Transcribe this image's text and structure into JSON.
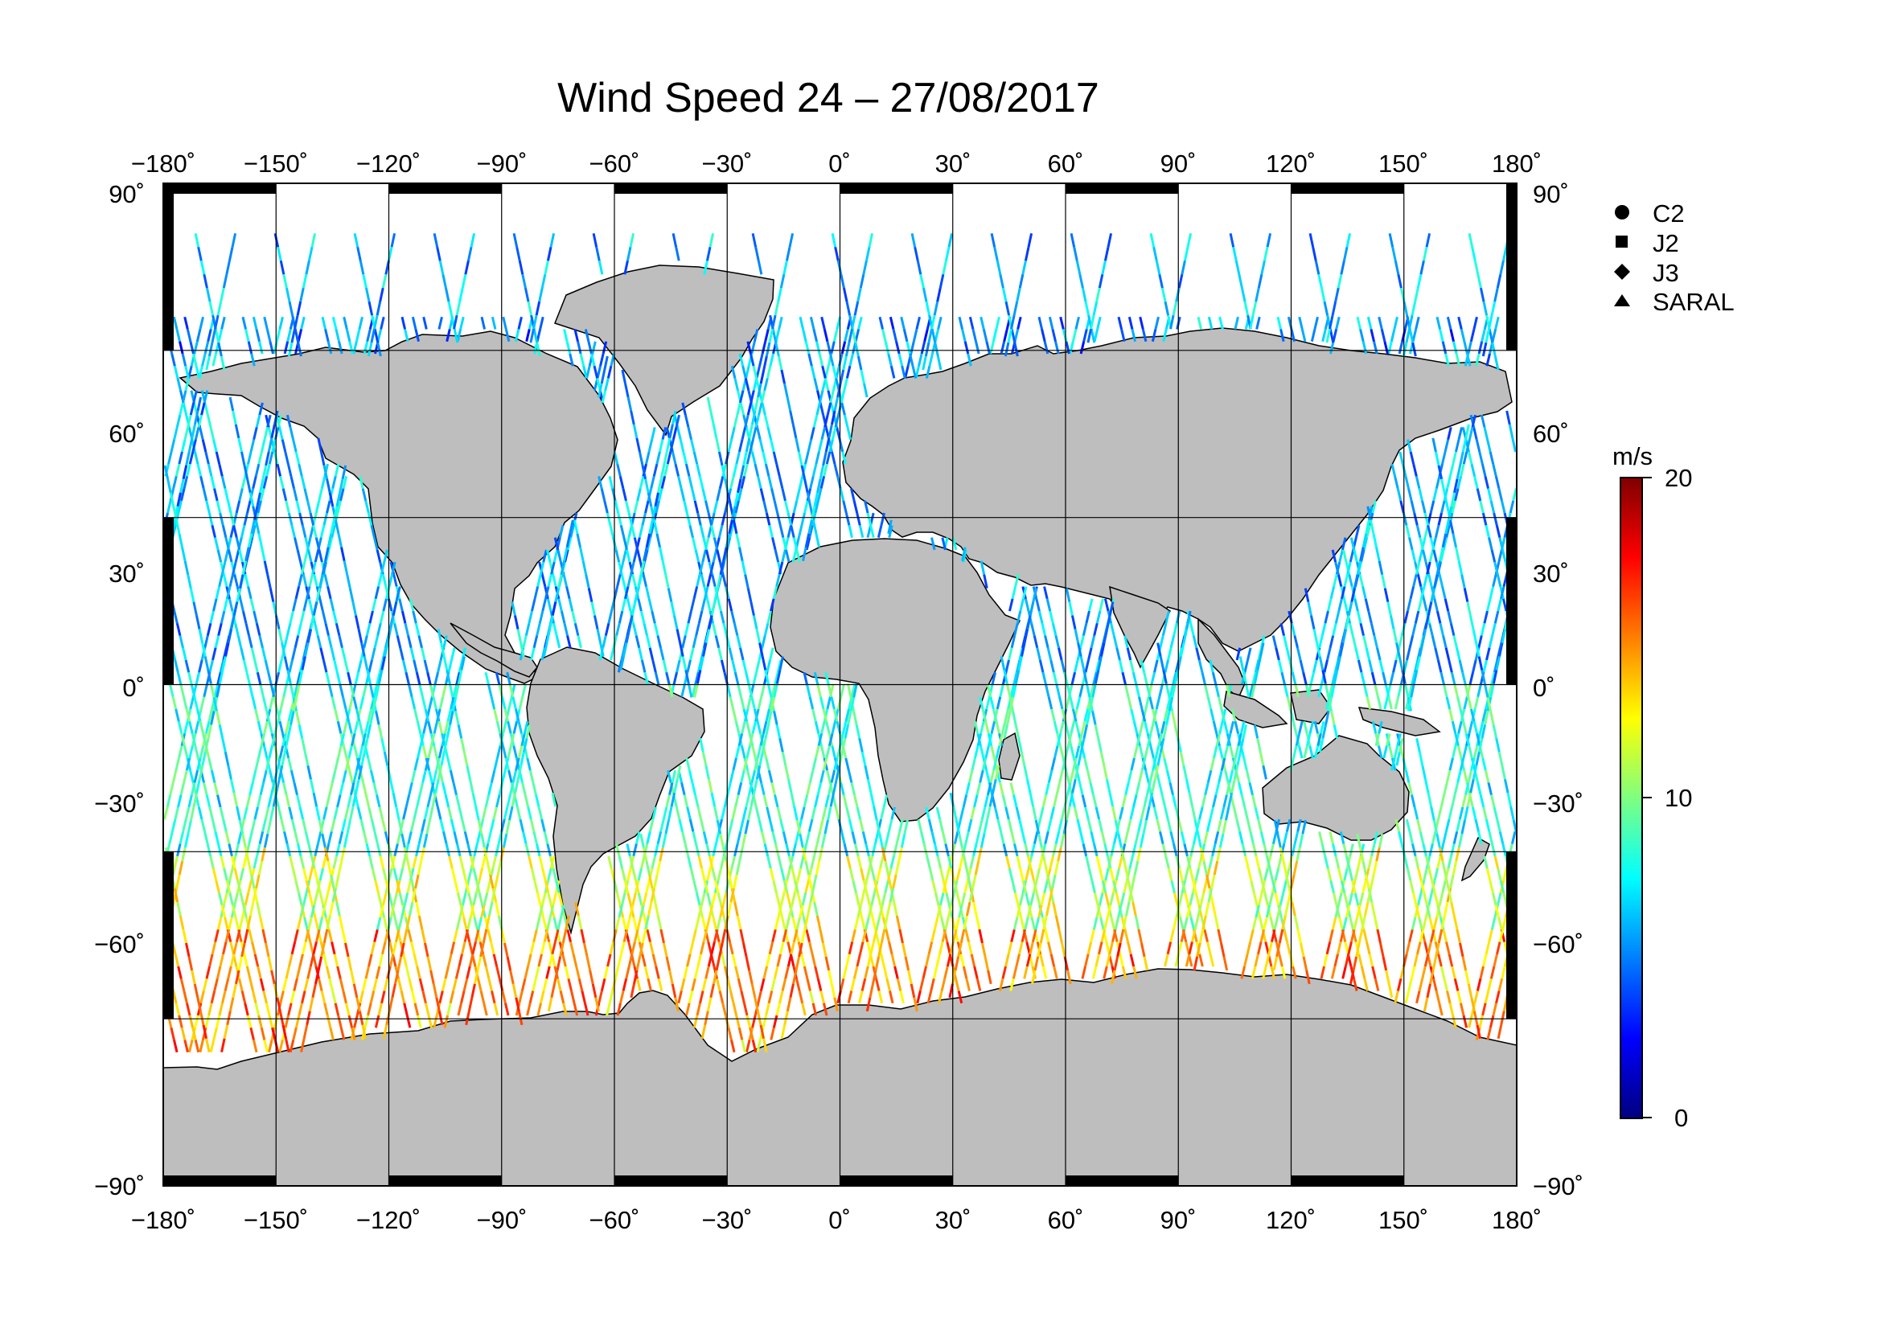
{
  "title": "Wind Speed 24 – 27/08/2017",
  "map": {
    "projection": "equirectangular",
    "lon_range": [
      -180,
      180
    ],
    "lat_range": [
      -90,
      90
    ],
    "grid_step_lon": 30,
    "grid_step_lat": 30,
    "grid": true,
    "land_color": "#bebebe",
    "lon_tick_labels": [
      "−180˚",
      "−150˚",
      "−120˚",
      "−90˚",
      "−60˚",
      "−30˚",
      "0˚",
      "30˚",
      "60˚",
      "90˚",
      "120˚",
      "150˚",
      "180˚"
    ],
    "lat_tick_labels": [
      "90˚",
      "60˚",
      "30˚",
      "0˚",
      "−30˚",
      "−60˚",
      "−90˚"
    ]
  },
  "legend": {
    "placement": "top-right",
    "items": [
      {
        "symbol": "circle",
        "label": "C2"
      },
      {
        "symbol": "square",
        "label": "J2"
      },
      {
        "symbol": "diamond",
        "label": "J3"
      },
      {
        "symbol": "triangle",
        "label": "SARAL"
      }
    ]
  },
  "colorbar": {
    "unit": "m/s",
    "min": 0,
    "max": 20,
    "tick_labels": [
      "20",
      "10",
      "0"
    ],
    "stops": [
      "#00007f",
      "#0000ff",
      "#007fff",
      "#00ffff",
      "#7fff7f",
      "#ffff00",
      "#ff7f00",
      "#ff0000",
      "#7f0000"
    ]
  },
  "chart_data": {
    "type": "scatter",
    "title": "Wind Speed 24 – 27/08/2017",
    "xlabel": "",
    "ylabel": "",
    "xlim": [
      -180,
      180
    ],
    "ylim": [
      -90,
      90
    ],
    "color_scale": {
      "unit": "m/s",
      "min": 0,
      "max": 20
    },
    "series": [
      {
        "name": "C2",
        "wind_speed_by_lat_band": [
          [
            60,
            66,
            6
          ],
          [
            30,
            60,
            6
          ],
          [
            0,
            30,
            6
          ],
          [
            -30,
            0,
            8
          ],
          [
            -45,
            -30,
            11
          ],
          [
            -66,
            -45,
            15
          ]
        ]
      },
      {
        "name": "J2",
        "wind_speed_by_lat_band": [
          [
            60,
            66,
            5
          ],
          [
            30,
            60,
            6
          ],
          [
            0,
            30,
            6
          ],
          [
            -30,
            0,
            8
          ],
          [
            -45,
            -30,
            11
          ],
          [
            -66,
            -45,
            14
          ]
        ]
      },
      {
        "name": "J3",
        "wind_speed_by_lat_band": [
          [
            60,
            66,
            5
          ],
          [
            30,
            60,
            6
          ],
          [
            0,
            30,
            6
          ],
          [
            -30,
            0,
            8
          ],
          [
            -45,
            -30,
            11
          ],
          [
            -66,
            -45,
            15
          ]
        ]
      },
      {
        "name": "SARAL",
        "wind_speed_by_lat_band": [
          [
            60,
            81,
            6
          ],
          [
            30,
            60,
            6
          ],
          [
            0,
            30,
            6
          ],
          [
            -30,
            0,
            8
          ],
          [
            -45,
            -30,
            12
          ],
          [
            -66,
            -45,
            15
          ]
        ]
      }
    ]
  }
}
